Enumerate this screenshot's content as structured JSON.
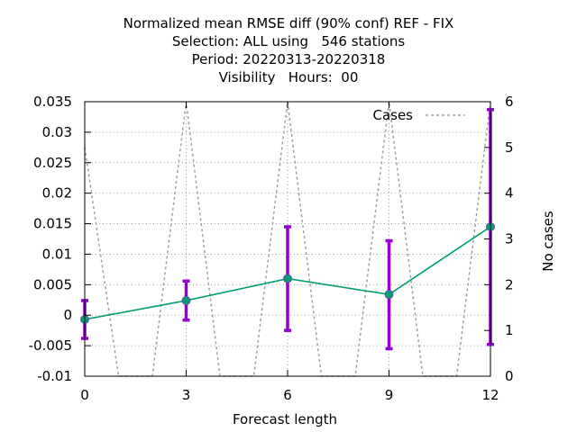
{
  "chart_data": {
    "type": "line",
    "title_lines": [
      "Normalized mean RMSE diff (90% conf) REF - FIX",
      "Selection: ALL using   546 stations",
      "Period: 20220313-20220318",
      "Visibility   Hours:  00"
    ],
    "xlabel": "Forecast length",
    "ylabel": "",
    "y2label": "No cases",
    "xlim": [
      0,
      12
    ],
    "ylim": [
      -0.01,
      0.035
    ],
    "y2lim": [
      0,
      6
    ],
    "x_ticks": [
      "0",
      "3",
      "6",
      "9",
      "12"
    ],
    "x_tick_values": [
      0,
      3,
      6,
      9,
      12
    ],
    "y_ticks": [
      "-0.01",
      "-0.005",
      "0",
      "0.005",
      "0.01",
      "0.015",
      "0.02",
      "0.025",
      "0.03",
      "0.035"
    ],
    "y_tick_values": [
      -0.01,
      -0.005,
      0,
      0.005,
      0.01,
      0.015,
      0.02,
      0.025,
      0.03,
      0.035
    ],
    "y2_ticks": [
      "0",
      "1",
      "2",
      "3",
      "4",
      "5",
      "6"
    ],
    "y2_tick_values": [
      0,
      1,
      2,
      3,
      4,
      5,
      6
    ],
    "grid": true,
    "legend": {
      "position": "top-right",
      "entries": [
        "Cases"
      ]
    },
    "series": [
      {
        "name": "REF - FIX",
        "color": "#009e73",
        "error_color": "#9400d3",
        "x": [
          0,
          3,
          6,
          9,
          12
        ],
        "y": [
          -0.0007,
          0.0024,
          0.006,
          0.0034,
          0.0145
        ],
        "err_low": [
          -0.0038,
          -0.0008,
          -0.0025,
          -0.0055,
          -0.0048
        ],
        "err_high": [
          0.0024,
          0.0056,
          0.0145,
          0.0122,
          0.0337
        ]
      },
      {
        "name": "Cases",
        "color": "#a0a0a0",
        "axis": "y2",
        "dashed": true,
        "x": [
          0,
          1,
          2,
          3,
          4,
          5,
          6,
          7,
          8,
          9,
          10,
          11,
          12
        ],
        "y": [
          5,
          0,
          0,
          6,
          0,
          0,
          6,
          0,
          0,
          6,
          0,
          0,
          6
        ]
      }
    ]
  }
}
